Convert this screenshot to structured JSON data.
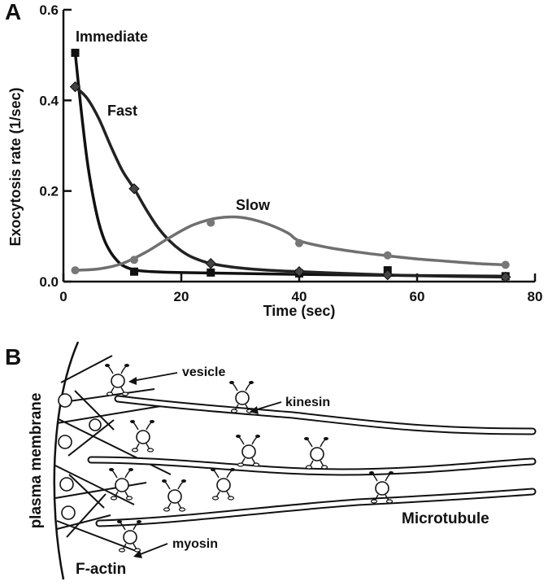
{
  "panel_a": {
    "letter": "A",
    "chart_data": {
      "type": "line",
      "xlabel": "Time (sec)",
      "ylabel": "Exocytosis rate (1/sec)",
      "xlim": [
        0,
        80
      ],
      "ylim": [
        0,
        0.6
      ],
      "x_ticks": [
        0,
        20,
        40,
        60,
        80
      ],
      "y_ticks": [
        0.0,
        0.2,
        0.4,
        0.6
      ],
      "x_tick_labels": [
        "0",
        "20",
        "40",
        "60",
        "80"
      ],
      "y_tick_labels": [
        "0.0",
        "0.2",
        "0.4",
        "0.6"
      ],
      "grid": false,
      "series": [
        {
          "name": "Immediate",
          "marker": "square",
          "color": "#111111",
          "points": [
            [
              2,
              0.505
            ],
            [
              12,
              0.022
            ],
            [
              25,
              0.02
            ],
            [
              40,
              0.018
            ],
            [
              55,
              0.025
            ],
            [
              75,
              0.012
            ]
          ],
          "curve": [
            [
              2,
              0.505
            ],
            [
              3,
              0.38
            ],
            [
              4,
              0.27
            ],
            [
              5,
              0.19
            ],
            [
              6,
              0.13
            ],
            [
              7,
              0.09
            ],
            [
              8,
              0.065
            ],
            [
              9,
              0.048
            ],
            [
              10,
              0.036
            ],
            [
              12,
              0.026
            ],
            [
              15,
              0.022
            ],
            [
              20,
              0.02
            ],
            [
              30,
              0.018
            ],
            [
              40,
              0.016
            ],
            [
              55,
              0.014
            ],
            [
              75,
              0.012
            ]
          ]
        },
        {
          "name": "Fast",
          "marker": "diamond",
          "color": "#222222",
          "points": [
            [
              2,
              0.43
            ],
            [
              12,
              0.205
            ],
            [
              25,
              0.04
            ],
            [
              40,
              0.022
            ],
            [
              55,
              0.015
            ],
            [
              75,
              0.01
            ]
          ],
          "curve": [
            [
              2,
              0.43
            ],
            [
              4,
              0.405
            ],
            [
              6,
              0.36
            ],
            [
              8,
              0.3
            ],
            [
              10,
              0.245
            ],
            [
              12,
              0.205
            ],
            [
              14,
              0.16
            ],
            [
              16,
              0.12
            ],
            [
              18,
              0.09
            ],
            [
              20,
              0.068
            ],
            [
              22,
              0.053
            ],
            [
              25,
              0.04
            ],
            [
              30,
              0.03
            ],
            [
              35,
              0.025
            ],
            [
              40,
              0.022
            ],
            [
              50,
              0.017
            ],
            [
              60,
              0.013
            ],
            [
              75,
              0.01
            ]
          ]
        },
        {
          "name": "Slow",
          "marker": "circle",
          "color": "#6f6f6f",
          "points": [
            [
              2,
              0.025
            ],
            [
              12,
              0.048
            ],
            [
              25,
              0.13
            ],
            [
              40,
              0.085
            ],
            [
              55,
              0.058
            ],
            [
              75,
              0.037
            ]
          ],
          "curve": [
            [
              2,
              0.025
            ],
            [
              6,
              0.028
            ],
            [
              10,
              0.04
            ],
            [
              14,
              0.065
            ],
            [
              18,
              0.097
            ],
            [
              22,
              0.125
            ],
            [
              26,
              0.14
            ],
            [
              30,
              0.142
            ],
            [
              34,
              0.13
            ],
            [
              38,
              0.108
            ],
            [
              40,
              0.09
            ],
            [
              45,
              0.075
            ],
            [
              50,
              0.065
            ],
            [
              55,
              0.057
            ],
            [
              60,
              0.05
            ],
            [
              65,
              0.045
            ],
            [
              70,
              0.04
            ],
            [
              75,
              0.037
            ]
          ]
        }
      ]
    }
  },
  "panel_b": {
    "letter": "B",
    "labels": {
      "vesicle": "vesicle",
      "kinesin": "kinesin",
      "plasma_membrane": "plasma membrane",
      "microtubule": "Microtubule",
      "myosin": "myosin",
      "f_actin": "F-actin"
    }
  }
}
